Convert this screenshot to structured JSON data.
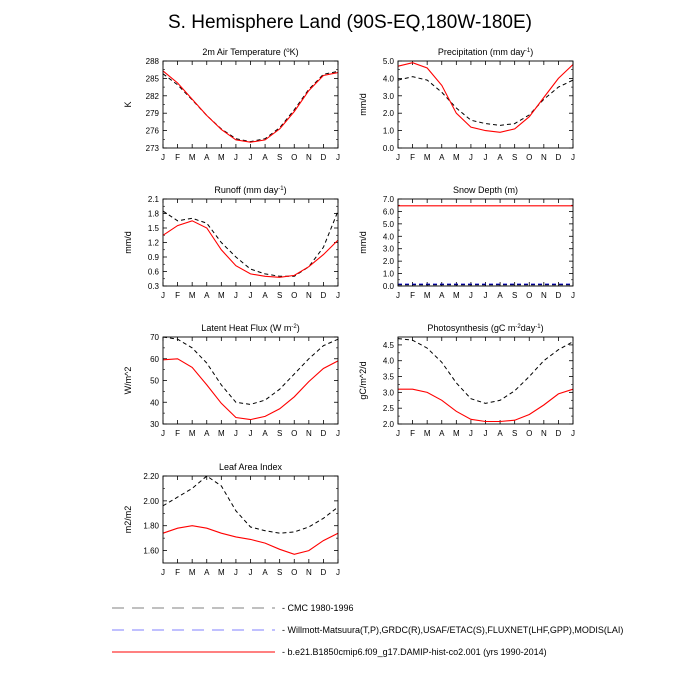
{
  "title": "S. Hemisphere Land (90S-EQ,180W-180E)",
  "months": [
    "J",
    "F",
    "M",
    "A",
    "M",
    "J",
    "J",
    "A",
    "S",
    "O",
    "N",
    "D",
    "J"
  ],
  "styles": {
    "colors": {
      "model": "#ff0000",
      "obs1": "#000000",
      "obs2": "#0000cc"
    },
    "legend_colors": [
      "#808080",
      "#8080ff",
      "#ff0000"
    ],
    "model_dash": "none",
    "obs_dash": "4,3"
  },
  "legend": [
    {
      "label": "CMC 1980-1996"
    },
    {
      "label": "Willmott-Matsuura(T,P),GRDC(R),USAF/ETAC(S),FLUXNET(LHF,GPP),MODIS(LAI)"
    },
    {
      "label": "b.e21.B1850cmip6.f09_g17.DAMIP-hist-co2.001 (yrs 1990-2014)"
    }
  ],
  "chart_data": [
    {
      "type": "line",
      "title_pre": "2m Air Temperature (",
      "title_sup": "o",
      "title_post": "K)",
      "ylabel": "K",
      "ylim": [
        273,
        288
      ],
      "yticks": [
        "273",
        "276",
        "279",
        "282",
        "285",
        "288"
      ],
      "series": [
        {
          "role": "obs1",
          "values": [
            285.8,
            283.9,
            281.3,
            278.6,
            276.3,
            274.6,
            274.1,
            274.6,
            276.5,
            279.6,
            283.1,
            285.7,
            286.2
          ]
        },
        {
          "role": "model",
          "values": [
            286.3,
            284.2,
            281.4,
            278.6,
            276.2,
            274.4,
            274.0,
            274.4,
            276.3,
            279.3,
            282.9,
            285.5,
            286.0
          ]
        }
      ]
    },
    {
      "type": "line",
      "title_pre": "Precipitation (mm day",
      "title_sup": "-1",
      "title_post": ")",
      "ylabel": "mm/d",
      "ylim": [
        0.0,
        5.0
      ],
      "yticks": [
        "0.0",
        "1.0",
        "2.0",
        "3.0",
        "4.0",
        "5.0"
      ],
      "series": [
        {
          "role": "obs1",
          "values": [
            3.9,
            4.1,
            3.9,
            3.2,
            2.3,
            1.6,
            1.4,
            1.3,
            1.4,
            1.9,
            2.8,
            3.5,
            3.9
          ]
        },
        {
          "role": "model",
          "values": [
            4.7,
            4.9,
            4.6,
            3.6,
            2.0,
            1.2,
            1.0,
            0.9,
            1.1,
            1.8,
            2.9,
            4.0,
            4.8
          ]
        }
      ]
    },
    {
      "type": "line",
      "title_pre": "Runoff (mm day",
      "title_sup": "-1",
      "title_post": ")",
      "ylabel": "mm/d",
      "ylim": [
        0.3,
        2.1
      ],
      "yticks": [
        "0.3",
        "0.6",
        "0.9",
        "1.2",
        "1.5",
        "1.8",
        "2.1"
      ],
      "series": [
        {
          "role": "obs1",
          "values": [
            1.85,
            1.65,
            1.7,
            1.6,
            1.2,
            0.9,
            0.65,
            0.55,
            0.5,
            0.5,
            0.7,
            1.1,
            1.85
          ]
        },
        {
          "role": "model",
          "values": [
            1.35,
            1.55,
            1.65,
            1.5,
            1.05,
            0.72,
            0.55,
            0.5,
            0.48,
            0.52,
            0.7,
            0.95,
            1.25
          ]
        }
      ]
    },
    {
      "type": "line",
      "title_pre": "Snow Depth (m)",
      "title_sup": "",
      "title_post": "",
      "ylabel": "mm/d",
      "ylim": [
        0.0,
        7.0
      ],
      "yticks": [
        "0.0",
        "1.0",
        "2.0",
        "3.0",
        "4.0",
        "5.0",
        "6.0",
        "7.0"
      ],
      "series": [
        {
          "role": "obs1",
          "values": [
            0.1,
            0.1,
            0.1,
            0.1,
            0.1,
            0.1,
            0.1,
            0.1,
            0.1,
            0.1,
            0.1,
            0.1,
            0.1
          ]
        },
        {
          "role": "obs2",
          "values": [
            0.15,
            0.15,
            0.15,
            0.15,
            0.15,
            0.15,
            0.15,
            0.15,
            0.15,
            0.15,
            0.15,
            0.15,
            0.15
          ]
        },
        {
          "role": "model",
          "values": [
            6.45,
            6.45,
            6.45,
            6.45,
            6.45,
            6.45,
            6.45,
            6.45,
            6.45,
            6.45,
            6.45,
            6.45,
            6.45
          ]
        }
      ]
    },
    {
      "type": "line",
      "title_pre": "Latent Heat Flux (W m",
      "title_sup": "-2",
      "title_post": ")",
      "ylabel": "W/m^2",
      "ylim": [
        30,
        70
      ],
      "yticks": [
        "30",
        "40",
        "50",
        "60",
        "70"
      ],
      "series": [
        {
          "role": "obs1",
          "values": [
            70,
            69,
            65,
            58,
            48,
            40,
            39,
            41,
            46,
            53,
            60,
            66,
            69
          ]
        },
        {
          "role": "model",
          "values": [
            59.5,
            60,
            56,
            48,
            39.5,
            33,
            32,
            33.5,
            37,
            42.5,
            49.5,
            55.5,
            59
          ]
        }
      ]
    },
    {
      "type": "line",
      "title_pre": "Photosynthesis (gC m",
      "title_sup": "-2",
      "title_post": "day",
      "title_sup2": "-1",
      "title_post2": ")",
      "ylabel": "gC/m^2/d",
      "ylim": [
        2.0,
        4.75
      ],
      "yticks": [
        "2.0",
        "2.5",
        "3.0",
        "3.5",
        "4.0",
        "4.5"
      ],
      "series": [
        {
          "role": "obs1",
          "values": [
            4.7,
            4.65,
            4.4,
            3.95,
            3.3,
            2.8,
            2.65,
            2.75,
            3.05,
            3.5,
            4.0,
            4.35,
            4.6
          ]
        },
        {
          "role": "model",
          "values": [
            3.1,
            3.1,
            3.0,
            2.75,
            2.4,
            2.15,
            2.08,
            2.08,
            2.12,
            2.3,
            2.6,
            2.95,
            3.1
          ]
        }
      ]
    },
    {
      "type": "line",
      "title_pre": "Leaf Area Index",
      "title_sup": "",
      "title_post": "",
      "ylabel": "m2/m2",
      "ylim": [
        1.5,
        2.2
      ],
      "yticks": [
        "1.60",
        "1.80",
        "2.00",
        "2.20"
      ],
      "series": [
        {
          "role": "obs1",
          "values": [
            1.96,
            2.03,
            2.1,
            2.2,
            2.12,
            1.92,
            1.79,
            1.76,
            1.74,
            1.75,
            1.79,
            1.86,
            1.95
          ]
        },
        {
          "role": "model",
          "values": [
            1.74,
            1.78,
            1.8,
            1.78,
            1.74,
            1.71,
            1.69,
            1.66,
            1.61,
            1.57,
            1.6,
            1.68,
            1.74
          ]
        }
      ]
    }
  ]
}
